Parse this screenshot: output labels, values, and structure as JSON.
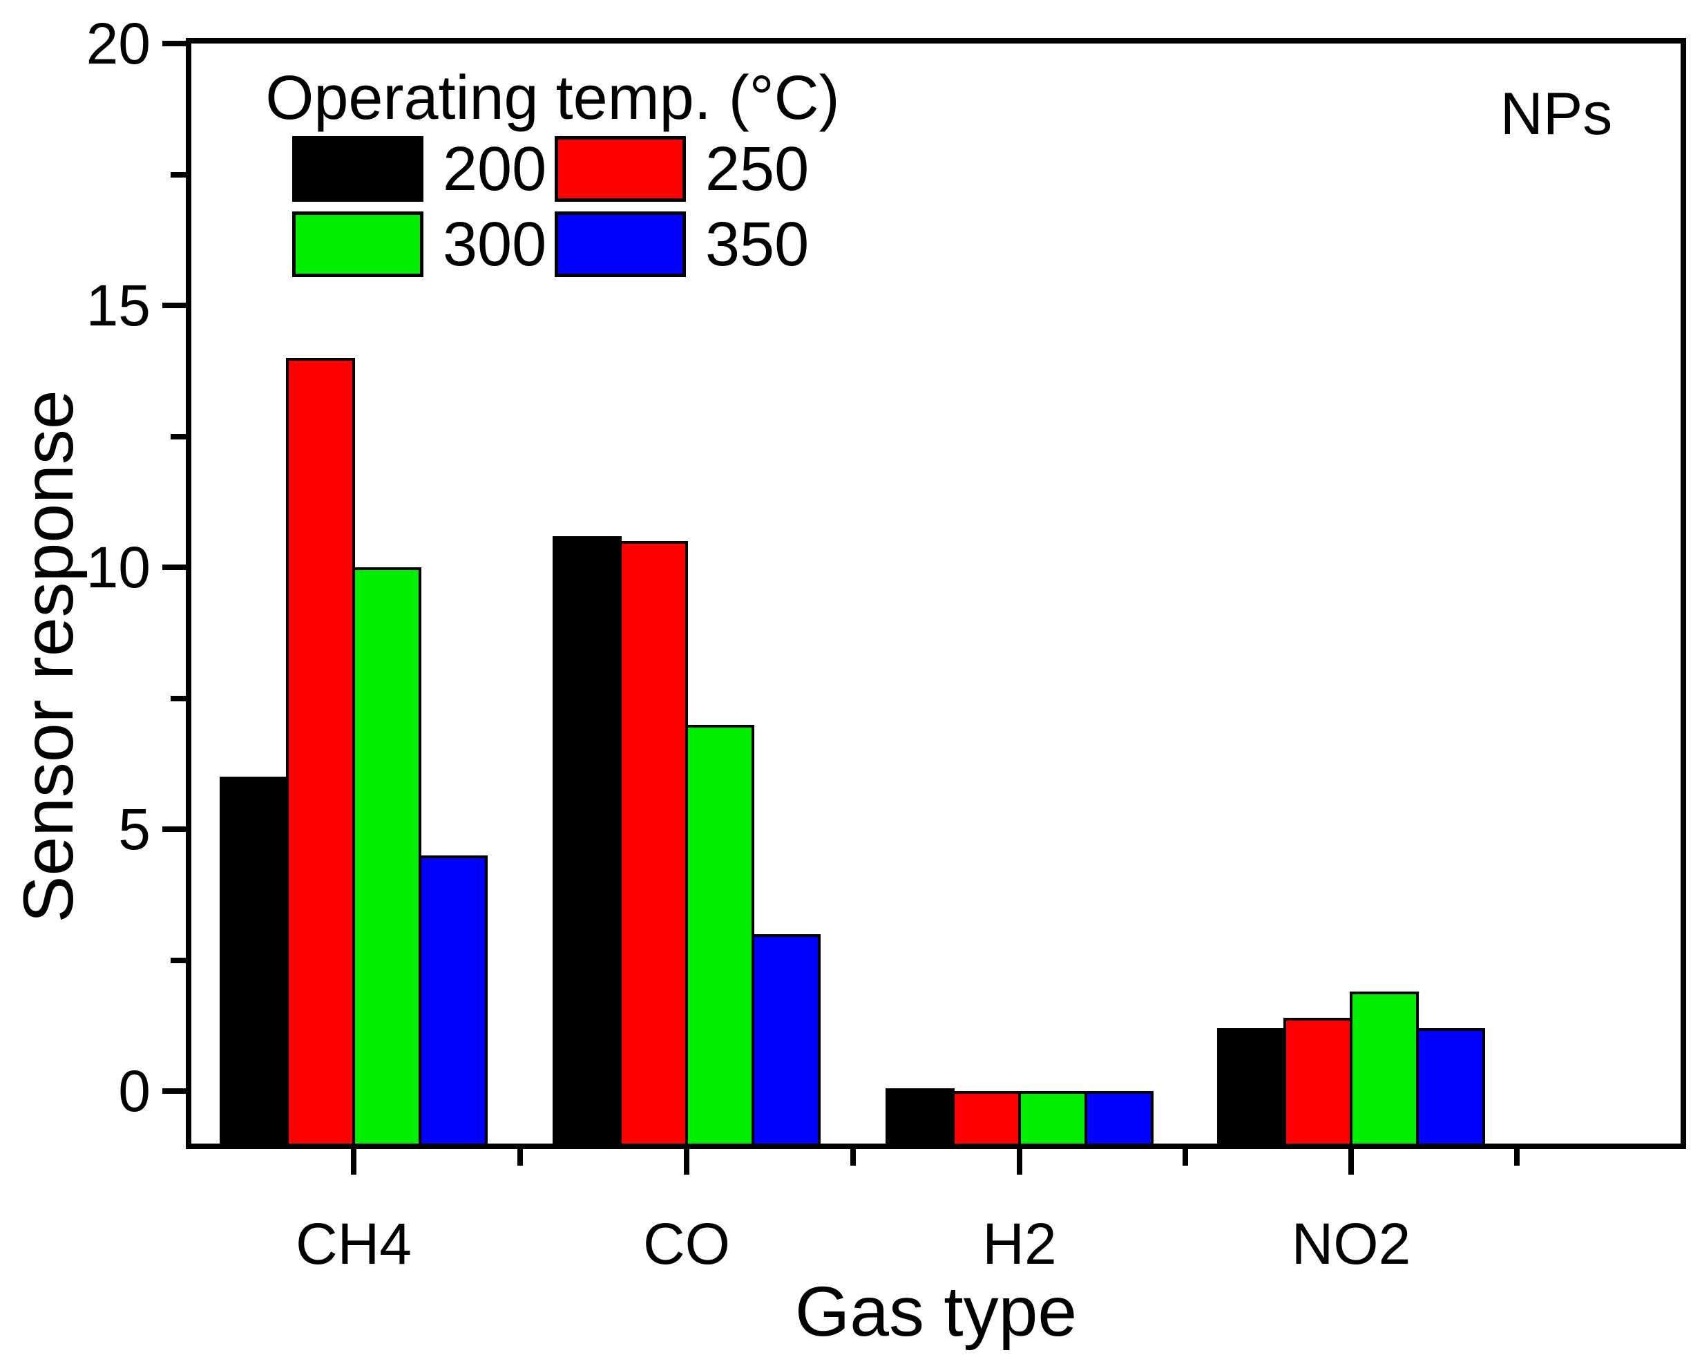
{
  "chart_data": {
    "type": "bar",
    "title": "",
    "xlabel": "Gas type",
    "ylabel": "Sensor response",
    "categories": [
      "CH4",
      "CO",
      "H2",
      "NO2"
    ],
    "series": [
      {
        "name": "200",
        "color": "#000000",
        "values": [
          6.0,
          10.6,
          0.05,
          1.2
        ]
      },
      {
        "name": "250",
        "color": "#FF0000",
        "values": [
          14.0,
          10.5,
          0.0,
          1.4
        ]
      },
      {
        "name": "300",
        "color": "#00EE00",
        "values": [
          10.0,
          7.0,
          0.0,
          1.9
        ]
      },
      {
        "name": "350",
        "color": "#0000FF",
        "values": [
          4.5,
          3.0,
          0.0,
          1.2
        ]
      }
    ],
    "ylim": [
      -1,
      20
    ],
    "y_major_ticks": [
      0,
      5,
      10,
      15,
      20
    ],
    "y_minor_ticks": [
      2.5,
      7.5,
      12.5,
      17.5
    ],
    "bars_drawn_from": "axis-min",
    "grid": false,
    "legend_title": "Operating temp. (°C)",
    "legend_position": "top-left-inside",
    "annotation": "NPs",
    "annotation_position": "top-right-inside",
    "axis_color": "#000000",
    "background": "#FFFFFF"
  }
}
